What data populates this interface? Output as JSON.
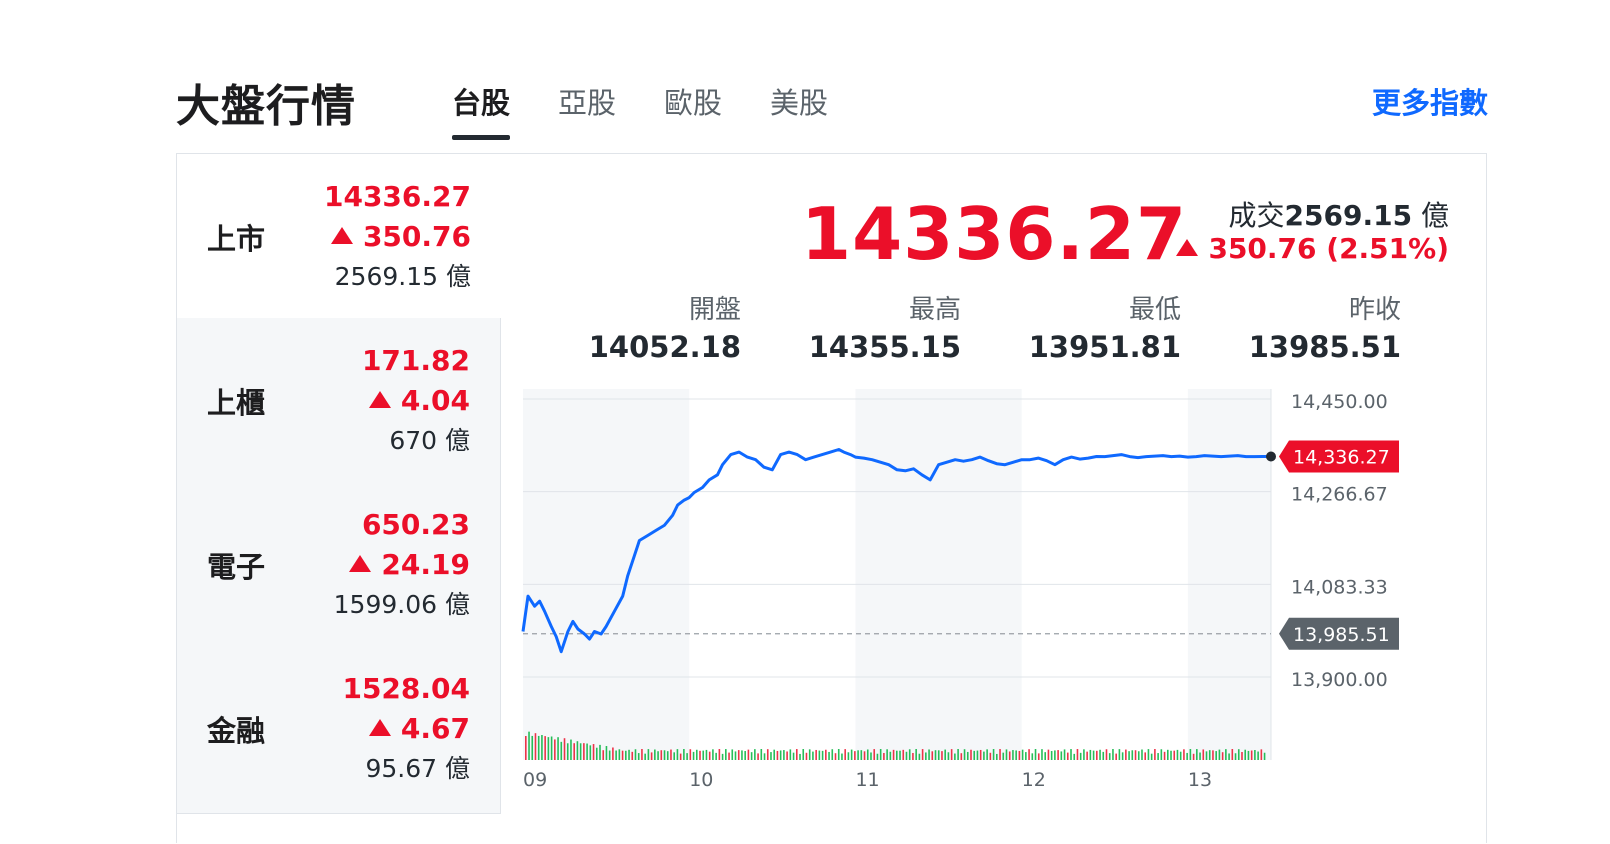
{
  "header": {
    "title": "大盤行情",
    "tabs": [
      {
        "label": "台股",
        "active": true
      },
      {
        "label": "亞股",
        "active": false
      },
      {
        "label": "歐股",
        "active": false
      },
      {
        "label": "美股",
        "active": false
      }
    ],
    "more_link": "更多指數"
  },
  "colors": {
    "up": "#eb0f29",
    "line": "#0f69ff",
    "prev_badge": "#5b636a",
    "green_bar": "#00b33c"
  },
  "sidebar": {
    "items": [
      {
        "name": "上市",
        "price": "14336.27",
        "change": "350.76",
        "volume": "2569.15",
        "unit": "億",
        "active": true
      },
      {
        "name": "上櫃",
        "price": "171.82",
        "change": "4.04",
        "volume": "670",
        "unit": "億",
        "active": false
      },
      {
        "name": "電子",
        "price": "650.23",
        "change": "24.19",
        "volume": "1599.06",
        "unit": "億",
        "active": false
      },
      {
        "name": "金融",
        "price": "1528.04",
        "change": "4.67",
        "volume": "95.67",
        "unit": "億",
        "active": false
      }
    ]
  },
  "main": {
    "price": "14336.27",
    "volume_label": "成交",
    "volume_value": "2569.15",
    "volume_unit": "億",
    "change_text": "350.76 (2.51%)",
    "stats": [
      {
        "label": "開盤",
        "value": "14052.18"
      },
      {
        "label": "最高",
        "value": "14355.15"
      },
      {
        "label": "最低",
        "value": "13951.81"
      },
      {
        "label": "昨收",
        "value": "13985.51"
      }
    ]
  },
  "chart_data": {
    "type": "line",
    "x_ticks": [
      "09",
      "10",
      "11",
      "12",
      "13"
    ],
    "y_ticks": [
      "14,450.00",
      "14,266.67",
      "14,083.33",
      "13,900.00"
    ],
    "ylim": [
      13900,
      14450
    ],
    "x_range": [
      9.0,
      13.5
    ],
    "current_label": "14,336.27",
    "current_value": 14336.27,
    "prev_close_label": "13,985.51",
    "prev_close_value": 13985.51,
    "series": [
      {
        "x": [
          9.0,
          9.03,
          9.07,
          9.1,
          9.13,
          9.17,
          9.2,
          9.23,
          9.27,
          9.3,
          9.33,
          9.37,
          9.4,
          9.43,
          9.47,
          9.5,
          9.55,
          9.6,
          9.63,
          9.67,
          9.7,
          9.75,
          9.8,
          9.85,
          9.9,
          9.93,
          9.97,
          10.0,
          10.03,
          10.08,
          10.12,
          10.17,
          10.2,
          10.25,
          10.3,
          10.35,
          10.4,
          10.45,
          10.5,
          10.55,
          10.6,
          10.65,
          10.7,
          10.75,
          10.8,
          10.85,
          10.9,
          10.93,
          10.97,
          11.0,
          11.05,
          11.1,
          11.15,
          11.2,
          11.25,
          11.3,
          11.35,
          11.4,
          11.45,
          11.5,
          11.55,
          11.6,
          11.65,
          11.7,
          11.75,
          11.8,
          11.85,
          11.9,
          11.95,
          12.0,
          12.05,
          12.1,
          12.15,
          12.2,
          12.25,
          12.3,
          12.35,
          12.4,
          12.45,
          12.5,
          12.55,
          12.6,
          12.65,
          12.7,
          12.75,
          12.8,
          12.85,
          12.9,
          12.95,
          13.0,
          13.05,
          13.1,
          13.15,
          13.2,
          13.25,
          13.3,
          13.35,
          13.4,
          13.45,
          13.5
        ],
        "y": [
          13990,
          14060,
          14040,
          14050,
          14030,
          14000,
          13980,
          13950,
          13990,
          14010,
          13995,
          13985,
          13975,
          13990,
          13985,
          14000,
          14030,
          14060,
          14100,
          14140,
          14170,
          14180,
          14190,
          14200,
          14220,
          14240,
          14250,
          14255,
          14265,
          14275,
          14290,
          14300,
          14320,
          14340,
          14345,
          14335,
          14330,
          14315,
          14310,
          14340,
          14345,
          14340,
          14330,
          14335,
          14340,
          14345,
          14350,
          14345,
          14340,
          14335,
          14333,
          14330,
          14325,
          14320,
          14310,
          14308,
          14312,
          14300,
          14290,
          14320,
          14325,
          14330,
          14327,
          14330,
          14335,
          14328,
          14322,
          14320,
          14325,
          14330,
          14330,
          14333,
          14328,
          14320,
          14330,
          14335,
          14331,
          14333,
          14336.27,
          14336,
          14338,
          14340,
          14336,
          14334,
          14336,
          14337,
          14338,
          14336,
          14337,
          14335,
          14336,
          14338,
          14337,
          14336,
          14337,
          14338,
          14336,
          14336,
          14336.27,
          14336.27
        ]
      }
    ],
    "shaded_hours": [
      "09",
      "11",
      "13"
    ],
    "grid": true,
    "has_volume_bars": true
  }
}
